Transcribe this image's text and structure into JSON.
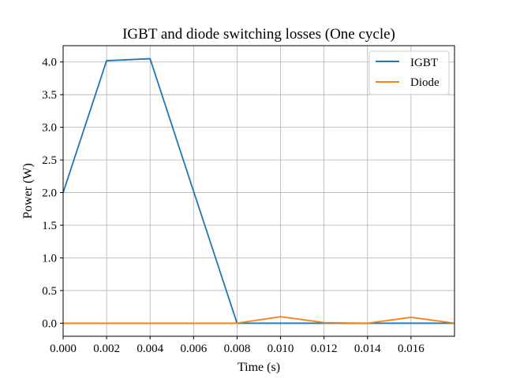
{
  "chart_data": {
    "type": "line",
    "title": "IGBT and diode switching losses (One cycle)",
    "xlabel": "Time (s)",
    "ylabel": "Power (W)",
    "xlim": [
      0.0,
      0.018
    ],
    "ylim": [
      -0.2,
      4.25
    ],
    "xticks": [
      0.0,
      0.002,
      0.004,
      0.006,
      0.008,
      0.01,
      0.012,
      0.014,
      0.016
    ],
    "xtick_labels": [
      "0.000",
      "0.002",
      "0.004",
      "0.006",
      "0.008",
      "0.010",
      "0.012",
      "0.014",
      "0.016"
    ],
    "yticks": [
      0.0,
      0.5,
      1.0,
      1.5,
      2.0,
      2.5,
      3.0,
      3.5,
      4.0
    ],
    "ytick_labels": [
      "0.0",
      "0.5",
      "1.0",
      "1.5",
      "2.0",
      "2.5",
      "3.0",
      "3.5",
      "4.0"
    ],
    "grid": true,
    "legend_position": "top-right",
    "series": [
      {
        "name": "IGBT",
        "color": "#1f77b4",
        "x": [
          0.0,
          0.002,
          0.004,
          0.006,
          0.008,
          0.01,
          0.012,
          0.014,
          0.016,
          0.018
        ],
        "y": [
          2.0,
          4.02,
          4.05,
          2.02,
          0.0,
          0.0,
          0.0,
          0.0,
          0.0,
          0.0
        ]
      },
      {
        "name": "Diode",
        "color": "#ff7f0e",
        "x": [
          0.0,
          0.002,
          0.004,
          0.006,
          0.008,
          0.01,
          0.012,
          0.014,
          0.016,
          0.018
        ],
        "y": [
          0.0,
          0.0,
          0.0,
          0.0,
          0.0,
          0.1,
          0.01,
          0.0,
          0.09,
          0.0
        ]
      }
    ]
  }
}
